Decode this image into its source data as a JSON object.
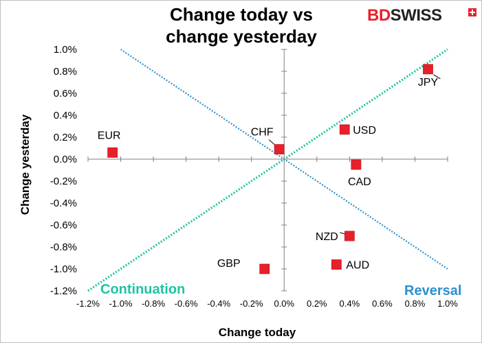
{
  "title_lines": [
    "Change today vs",
    "change yesterday"
  ],
  "logo": {
    "bd": "BD",
    "swiss": "SWISS"
  },
  "chart_data": {
    "type": "scatter",
    "title": "Change today vs change yesterday",
    "xlabel": "Change today",
    "ylabel": "Change yesterday",
    "xlim": [
      -1.2,
      1.0
    ],
    "ylim": [
      -1.2,
      1.0
    ],
    "xticks": [
      -1.2,
      -1.0,
      -0.8,
      -0.6,
      -0.4,
      -0.2,
      0.0,
      0.2,
      0.4,
      0.6,
      0.8,
      1.0
    ],
    "yticks": [
      1.0,
      0.8,
      0.6,
      0.4,
      0.2,
      0.0,
      -0.2,
      -0.4,
      -0.6,
      -0.8,
      -1.0,
      -1.2
    ],
    "xtick_labels": [
      "-1.2%",
      "-1.0%",
      "-0.8%",
      "-0.6%",
      "-0.4%",
      "-0.2%",
      "0.0%",
      "0.2%",
      "0.4%",
      "0.6%",
      "0.8%",
      "1.0%"
    ],
    "ytick_labels": [
      "1.0%",
      "0.8%",
      "0.6%",
      "0.4%",
      "0.2%",
      "0.0%",
      "-0.2%",
      "-0.4%",
      "-0.6%",
      "-0.8%",
      "-1.0%",
      "-1.2%"
    ],
    "points": [
      {
        "label": "JPY",
        "x": 0.88,
        "y": 0.82
      },
      {
        "label": "USD",
        "x": 0.37,
        "y": 0.27
      },
      {
        "label": "CHF",
        "x": -0.03,
        "y": 0.09
      },
      {
        "label": "EUR",
        "x": -1.05,
        "y": 0.06
      },
      {
        "label": "CAD",
        "x": 0.44,
        "y": -0.05
      },
      {
        "label": "NZD",
        "x": 0.4,
        "y": -0.7
      },
      {
        "label": "AUD",
        "x": 0.32,
        "y": -0.96
      },
      {
        "label": "GBP",
        "x": -0.12,
        "y": -1.0
      }
    ],
    "continuation_line": {
      "from": [
        -1.2,
        -1.2
      ],
      "to": [
        1.0,
        1.0
      ],
      "color": "#1fc4a0"
    },
    "reversal_line": {
      "from": [
        -1.0,
        1.0
      ],
      "to": [
        1.0,
        -1.0
      ],
      "color": "#2a8fd0"
    },
    "annotations": {
      "continuation": "Continuation",
      "reversal": "Reversal"
    },
    "colors": {
      "marker": "#e8202a",
      "continuation": "#1fc4a0",
      "reversal": "#2a8fd0"
    },
    "grid": false,
    "legend": "none"
  }
}
